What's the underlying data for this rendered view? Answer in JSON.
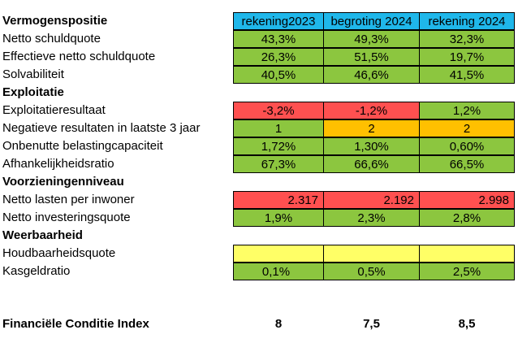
{
  "header": {
    "section": "Vermogenspositie",
    "columns": [
      "rekening2023",
      "begroting 2024",
      "rekening 2024"
    ]
  },
  "colors": {
    "header_blue": "#1fb7ea",
    "green": "#8cc63f",
    "red": "#ff5050",
    "orange": "#ffc000",
    "yellow": "#ffff66"
  },
  "rows": {
    "netto_schuldquote": {
      "label": "Netto schuldquote",
      "values": [
        "43,3%",
        "49,3%",
        "32,3%"
      ],
      "colors": [
        "green",
        "green",
        "green"
      ]
    },
    "effectieve_netto_schuldquote": {
      "label": "Effectieve netto schuldquote",
      "values": [
        "26,3%",
        "51,5%",
        "19,7%"
      ],
      "colors": [
        "green",
        "green",
        "green"
      ]
    },
    "solvabiliteit": {
      "label": "Solvabiliteit",
      "values": [
        "40,5%",
        "46,6%",
        "41,5%"
      ],
      "colors": [
        "green",
        "green",
        "green"
      ]
    },
    "exploitatie_heading": {
      "label": "Exploitatie"
    },
    "exploitatieresultaat": {
      "label": "Exploitatieresultaat",
      "values": [
        "-3,2%",
        "-1,2%",
        "1,2%"
      ],
      "colors": [
        "red",
        "red",
        "green"
      ]
    },
    "negatieve_resultaten": {
      "label": "Negatieve resultaten in laatste 3 jaar",
      "values": [
        "1",
        "2",
        "2"
      ],
      "colors": [
        "green",
        "orange",
        "orange"
      ]
    },
    "onbenutte_belastingcapaciteit": {
      "label": "Onbenutte belastingcapaciteit",
      "values": [
        "1,72%",
        "1,30%",
        "0,60%"
      ],
      "colors": [
        "green",
        "green",
        "green"
      ]
    },
    "afhankelijkheidsratio": {
      "label": "Afhankelijkheidsratio",
      "values": [
        "67,3%",
        "66,6%",
        "66,5%"
      ],
      "colors": [
        "green",
        "green",
        "green"
      ]
    },
    "voorzieningenniveau_heading": {
      "label": "Voorzieningenniveau"
    },
    "netto_lasten_per_inwoner": {
      "label": "Netto lasten per inwoner",
      "values": [
        "2.317",
        "2.192",
        "2.998"
      ],
      "colors": [
        "red",
        "red",
        "red"
      ]
    },
    "netto_investeringsquote": {
      "label": "Netto investeringsquote",
      "values": [
        "1,9%",
        "2,3%",
        "2,8%"
      ],
      "colors": [
        "green",
        "green",
        "green"
      ]
    },
    "weerbaarheid_heading": {
      "label": "Weerbaarheid"
    },
    "houdbaarheidsquote": {
      "label": "Houdbaarheidsquote",
      "values": [
        "",
        "",
        ""
      ],
      "colors": [
        "yellow",
        "yellow",
        "yellow"
      ]
    },
    "kasgeldratio": {
      "label": "Kasgeldratio",
      "values": [
        "0,1%",
        "0,5%",
        "2,5%"
      ],
      "colors": [
        "green",
        "green",
        "green"
      ]
    }
  },
  "fci": {
    "label": "Financiële Conditie Index",
    "values": [
      "8",
      "7,5",
      "8,5"
    ]
  }
}
